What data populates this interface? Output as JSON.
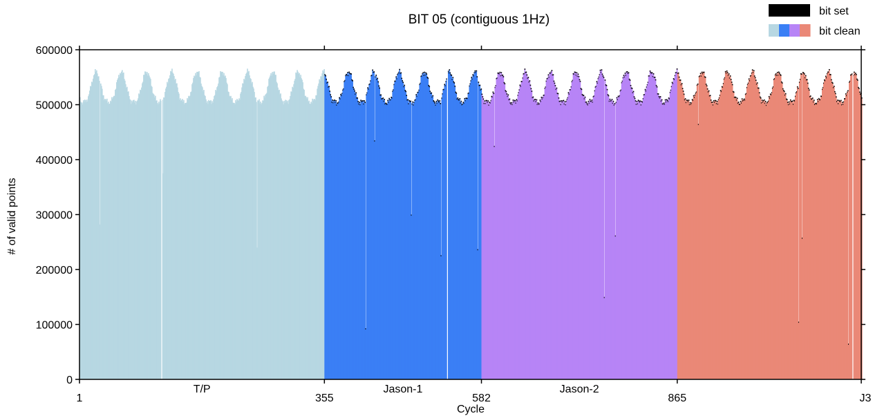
{
  "chart_data": {
    "type": "bar",
    "title": "BIT 05 (contiguous 1Hz)",
    "xlabel": "Cycle",
    "ylabel": "# of valid points",
    "ylim": [
      0,
      600000
    ],
    "xlim": [
      1,
      1131
    ],
    "y_ticks": [
      0,
      100000,
      200000,
      300000,
      400000,
      500000,
      600000
    ],
    "y_tick_labels": [
      "0",
      "100000",
      "200000",
      "300000",
      "400000",
      "500000",
      "600000"
    ],
    "x_ticks": [
      1,
      355,
      582,
      865,
      1131
    ],
    "x_tick_labels": [
      "1",
      "355",
      "582",
      "865",
      "J3"
    ],
    "missions": [
      {
        "name": "T/P",
        "start": 1,
        "end": 355,
        "color": "#b7d7e2"
      },
      {
        "name": "Jason-1",
        "start": 355,
        "end": 582,
        "color": "#3a7ff5"
      },
      {
        "name": "Jason-2",
        "start": 582,
        "end": 865,
        "color": "#b784f6"
      },
      {
        "name": "",
        "start": 865,
        "end": 1131,
        "color": "#ea8877"
      }
    ],
    "legend": {
      "position": "top-right",
      "entries": [
        {
          "label": "bit set",
          "color": "#000000"
        },
        {
          "label": "bit clean",
          "colors": [
            "#b7d7e2",
            "#3a7ff5",
            "#b784f6",
            "#ea8877"
          ]
        }
      ]
    },
    "bit_set_band": 3000,
    "cycle_series": {
      "description": "valid points per cycle",
      "baseline": 505000,
      "amplitude": 55000,
      "period_cycles": 36.5,
      "dropouts": [
        {
          "cycle": 30,
          "value": 282000
        },
        {
          "cycle": 119,
          "value": 0
        },
        {
          "cycle": 121,
          "value": 375000
        },
        {
          "cycle": 257,
          "value": 240000
        },
        {
          "cycle": 414,
          "value": 93000
        },
        {
          "cycle": 427,
          "value": 435000
        },
        {
          "cycle": 480,
          "value": 300000
        },
        {
          "cycle": 523,
          "value": 226000
        },
        {
          "cycle": 532,
          "value": 0
        },
        {
          "cycle": 576,
          "value": 237000
        },
        {
          "cycle": 600,
          "value": 425000
        },
        {
          "cycle": 759,
          "value": 150000
        },
        {
          "cycle": 775,
          "value": 262000
        },
        {
          "cycle": 895,
          "value": 465000
        },
        {
          "cycle": 1040,
          "value": 105000
        },
        {
          "cycle": 1045,
          "value": 258000
        },
        {
          "cycle": 1112,
          "value": 65000
        },
        {
          "cycle": 1118,
          "value": 0
        }
      ]
    }
  }
}
